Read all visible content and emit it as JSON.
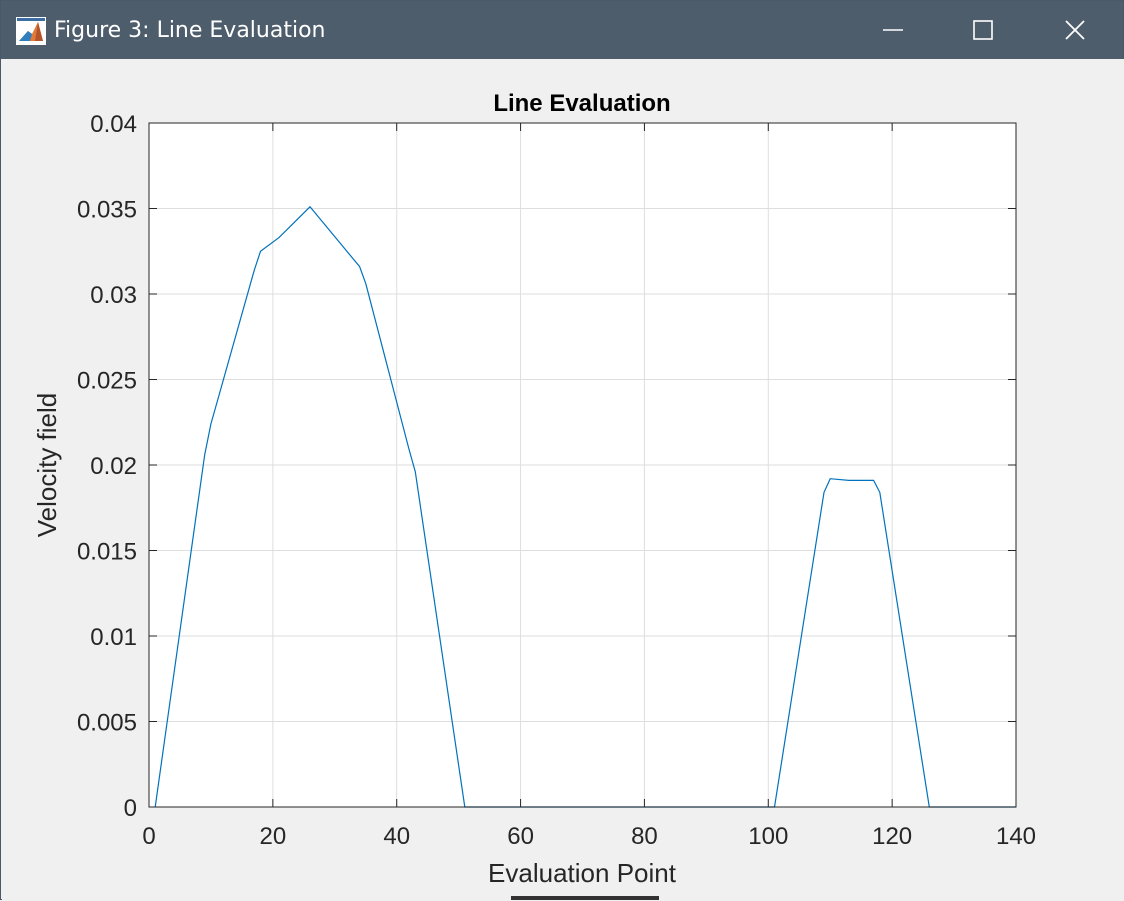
{
  "window": {
    "title": "Figure 3: Line Evaluation",
    "icons": {
      "app": "matlab-icon",
      "minimize": "minimize-icon",
      "maximize": "maximize-icon",
      "close": "close-icon"
    },
    "colors": {
      "titlebar": "#4e5d6c",
      "background": "#f0f0f0"
    }
  },
  "chart_data": {
    "type": "line",
    "title": "Line Evaluation",
    "xlabel": "Evaluation Point",
    "ylabel": "Velocity field",
    "xlim": [
      0,
      140
    ],
    "ylim": [
      0,
      0.04
    ],
    "xticks": [
      0,
      20,
      40,
      60,
      80,
      100,
      120,
      140
    ],
    "yticks": [
      0,
      0.005,
      0.01,
      0.015,
      0.02,
      0.025,
      0.03,
      0.035,
      0.04
    ],
    "xtick_labels": [
      "0",
      "20",
      "40",
      "60",
      "80",
      "100",
      "120",
      "140"
    ],
    "ytick_labels": [
      "0",
      "0.005",
      "0.01",
      "0.015",
      "0.02",
      "0.025",
      "0.03",
      "0.035",
      "0.04"
    ],
    "grid": true,
    "series": [
      {
        "color": "#0072bd",
        "x": [
          1,
          9,
          10,
          17,
          18,
          21,
          26,
          34,
          35,
          42,
          43,
          51,
          52,
          100,
          101,
          109,
          110,
          113,
          117,
          118,
          126,
          127,
          140
        ],
        "y": [
          0,
          0.0206,
          0.0224,
          0.0314,
          0.0325,
          0.0333,
          0.0351,
          0.0316,
          0.0306,
          0.0209,
          0.0196,
          0,
          0,
          0,
          0,
          0.0184,
          0.0192,
          0.0191,
          0.0191,
          0.0184,
          0,
          0,
          0
        ]
      }
    ]
  }
}
